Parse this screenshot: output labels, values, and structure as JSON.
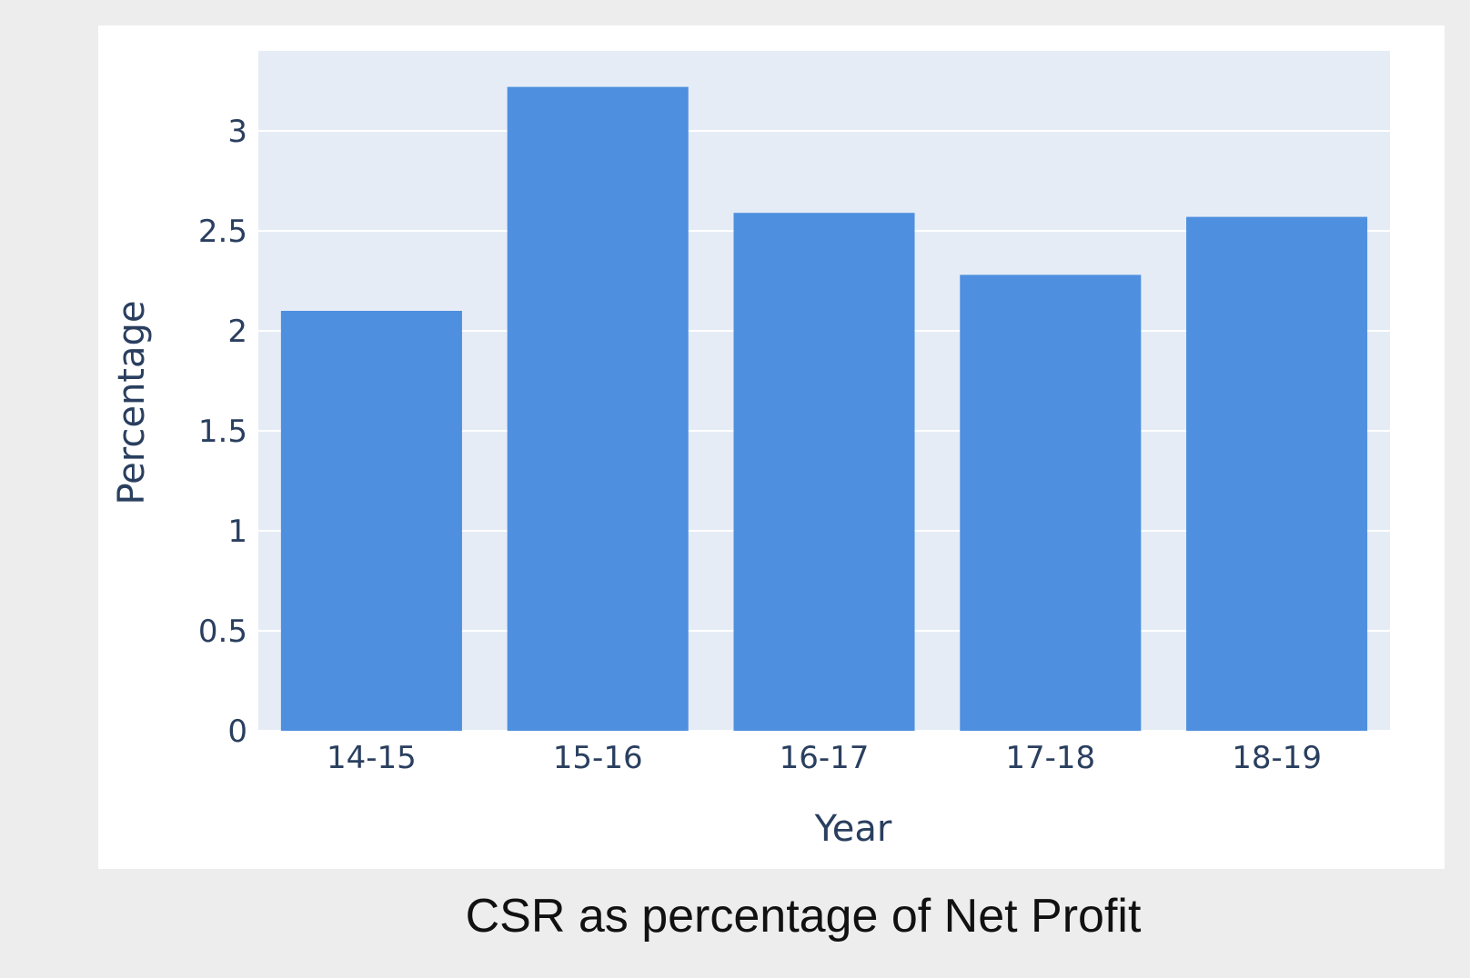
{
  "caption": "CSR as percentage of Net Profit",
  "chart_data": {
    "type": "bar",
    "title": "",
    "xlabel": "Year",
    "ylabel": "Percentage",
    "categories": [
      "14-15",
      "15-16",
      "16-17",
      "17-18",
      "18-19"
    ],
    "values": [
      2.1,
      3.22,
      2.59,
      2.28,
      2.57
    ],
    "ylim": [
      0,
      3.4
    ],
    "yticks": [
      0,
      0.5,
      1,
      1.5,
      2,
      2.5,
      3
    ],
    "ytick_labels": [
      "0",
      "0.5",
      "1",
      "1.5",
      "2",
      "2.5",
      "3"
    ],
    "grid": true,
    "legend": "none"
  },
  "colors": {
    "bar": "#4e8fdf",
    "plot_background": "#e5ecf6",
    "paper_background": "#ffffff",
    "gridline": "#ffffff",
    "axis_text": "#2a3f5f",
    "page_background": "#ededed"
  }
}
